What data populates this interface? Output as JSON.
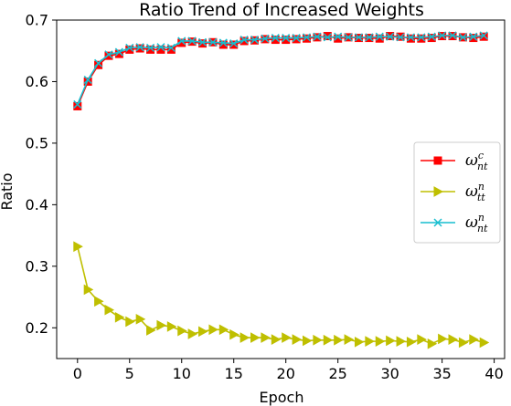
{
  "chart_data": {
    "type": "line",
    "title": "Ratio Trend of Increased Weights",
    "xlabel": "Epoch",
    "ylabel": "Ratio",
    "xlim": [
      -2,
      41
    ],
    "ylim": [
      0.15,
      0.7
    ],
    "xticks": [
      0,
      5,
      10,
      15,
      20,
      25,
      30,
      35,
      40
    ],
    "yticks": [
      0.2,
      0.3,
      0.4,
      0.5,
      0.6,
      0.7
    ],
    "xtick_labels": [
      "0",
      "5",
      "10",
      "15",
      "20",
      "25",
      "30",
      "35",
      "40"
    ],
    "ytick_labels": [
      "0.2",
      "0.3",
      "0.4",
      "0.5",
      "0.6",
      "0.7"
    ],
    "grid": false,
    "legend_position": "center-right",
    "x": [
      0,
      1,
      2,
      3,
      4,
      5,
      6,
      7,
      8,
      9,
      10,
      11,
      12,
      13,
      14,
      15,
      16,
      17,
      18,
      19,
      20,
      21,
      22,
      23,
      24,
      25,
      26,
      27,
      28,
      29,
      30,
      31,
      32,
      33,
      34,
      35,
      36,
      37,
      38,
      39
    ],
    "series": [
      {
        "name": "ω_nt^c",
        "legend_base": "ω",
        "legend_sub": "nt",
        "legend_sup": "c",
        "color": "#ff0000",
        "marker": "square",
        "values": [
          0.56,
          0.6,
          0.627,
          0.642,
          0.645,
          0.652,
          0.654,
          0.652,
          0.652,
          0.652,
          0.663,
          0.665,
          0.662,
          0.664,
          0.66,
          0.66,
          0.666,
          0.667,
          0.669,
          0.668,
          0.668,
          0.669,
          0.67,
          0.672,
          0.674,
          0.67,
          0.672,
          0.671,
          0.671,
          0.67,
          0.674,
          0.673,
          0.67,
          0.67,
          0.671,
          0.674,
          0.674,
          0.672,
          0.671,
          0.673
        ]
      },
      {
        "name": "ω_tt^n",
        "legend_base": "ω",
        "legend_sub": "tt",
        "legend_sup": "n",
        "color": "#bfbf00",
        "marker": "triangle-right",
        "values": [
          0.332,
          0.262,
          0.243,
          0.229,
          0.217,
          0.21,
          0.214,
          0.196,
          0.204,
          0.202,
          0.195,
          0.19,
          0.194,
          0.197,
          0.197,
          0.189,
          0.184,
          0.184,
          0.184,
          0.181,
          0.184,
          0.181,
          0.179,
          0.18,
          0.18,
          0.18,
          0.181,
          0.177,
          0.178,
          0.178,
          0.179,
          0.178,
          0.177,
          0.181,
          0.174,
          0.182,
          0.181,
          0.176,
          0.181,
          0.176
        ]
      },
      {
        "name": "ω_nt^n",
        "legend_base": "ω",
        "legend_sub": "nt",
        "legend_sup": "n",
        "color": "#17becf",
        "marker": "x",
        "values": [
          0.563,
          0.603,
          0.63,
          0.644,
          0.648,
          0.655,
          0.656,
          0.655,
          0.656,
          0.655,
          0.666,
          0.666,
          0.664,
          0.664,
          0.663,
          0.662,
          0.668,
          0.668,
          0.67,
          0.671,
          0.671,
          0.671,
          0.672,
          0.673,
          0.672,
          0.673,
          0.672,
          0.672,
          0.672,
          0.673,
          0.673,
          0.672,
          0.672,
          0.672,
          0.673,
          0.675,
          0.675,
          0.672,
          0.673,
          0.675
        ]
      }
    ]
  }
}
